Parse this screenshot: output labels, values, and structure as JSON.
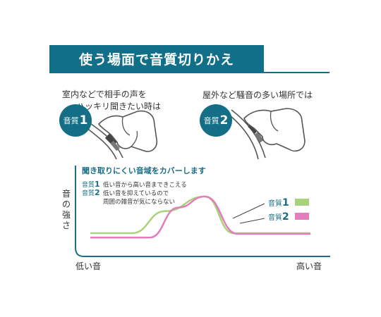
{
  "banner": {
    "title": "使う場面で音質切りかえ"
  },
  "scenes": [
    {
      "lines": [
        "室内などで相手の声を",
        "ハッキリ聞きたい時は"
      ],
      "badge_label": "音質",
      "badge_number": "1"
    },
    {
      "lines": [
        "屋外など騒音の多い場所では"
      ],
      "badge_label": "音質",
      "badge_number": "2"
    }
  ],
  "chart": {
    "heading": "聞き取りにくい音域をカバーします",
    "notes": [
      {
        "label": "音質",
        "number": "1",
        "text": "低い音から高い音まできこえる"
      },
      {
        "label": "音質",
        "number": "2",
        "text": "低い音を抑えているので",
        "text2": "周囲の雑音が気にならない"
      }
    ],
    "y_axis_label": "音の強さ",
    "x_low_label": "低い音",
    "x_high_label": "高い音"
  },
  "chart_data": {
    "type": "line",
    "x_axis": "低い音 → 高い音",
    "y_axis": "音の強さ",
    "series": [
      {
        "label": "音質",
        "number": "1",
        "color": "#a8d37a",
        "shape": [
          [
            0,
            0.0
          ],
          [
            0.19,
            0.0
          ],
          [
            0.34,
            0.6
          ],
          [
            0.52,
            1.0
          ],
          [
            0.65,
            0.0
          ],
          [
            1.0,
            0.0
          ]
        ]
      },
      {
        "label": "音質",
        "number": "2",
        "color": "#e47dbb",
        "shape": [
          [
            0,
            -0.12
          ],
          [
            0.27,
            -0.12
          ],
          [
            0.4,
            0.7
          ],
          [
            0.52,
            1.0
          ],
          [
            0.67,
            -0.02
          ],
          [
            1.0,
            -0.02
          ]
        ]
      }
    ]
  }
}
